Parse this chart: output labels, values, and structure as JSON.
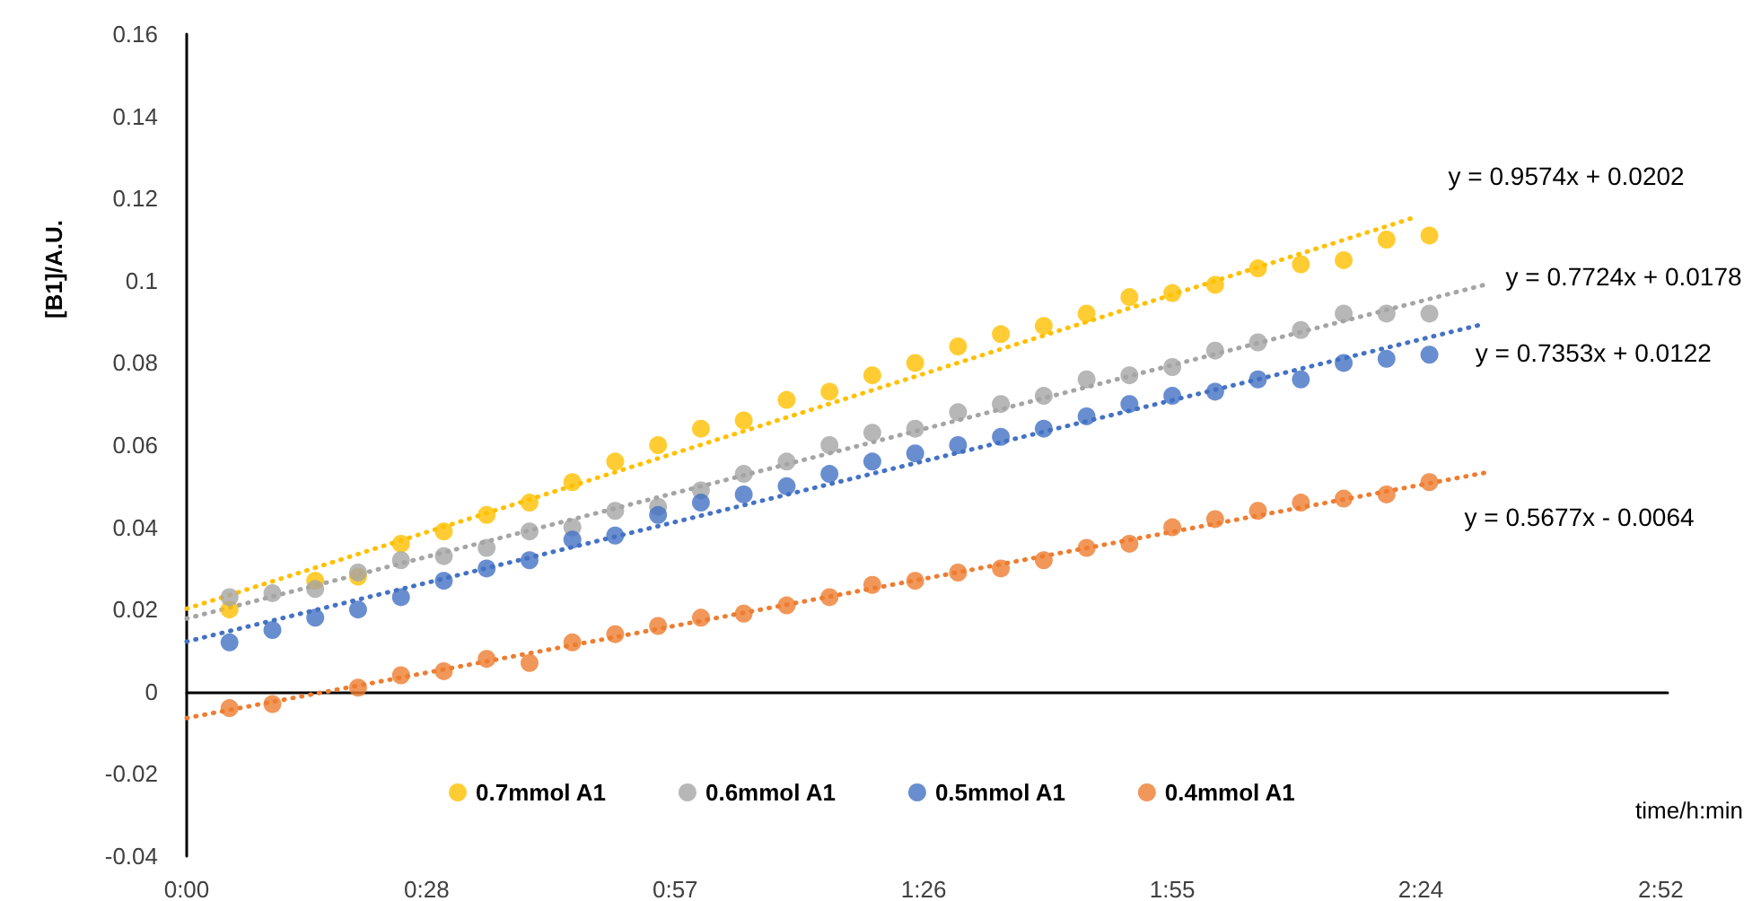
{
  "chart_data": {
    "type": "scatter",
    "xlabel": "time/h:min",
    "ylabel": "[B1]/A.U.",
    "xlim": [
      0,
      2.88
    ],
    "xticks": [
      {
        "value": 0,
        "label": "0:00"
      },
      {
        "value": 0.4667,
        "label": "0:28"
      },
      {
        "value": 0.95,
        "label": "0:57"
      },
      {
        "value": 1.4333,
        "label": "1:26"
      },
      {
        "value": 1.9167,
        "label": "1:55"
      },
      {
        "value": 2.4,
        "label": "2:24"
      },
      {
        "value": 2.8667,
        "label": "2:52"
      }
    ],
    "ylim": [
      -0.04,
      0.16
    ],
    "yticks": [
      -0.04,
      -0.02,
      0,
      0.02,
      0.04,
      0.06,
      0.08,
      0.1,
      0.12,
      0.14,
      0.16
    ],
    "x": [
      0.0833,
      0.1667,
      0.25,
      0.3333,
      0.4167,
      0.5,
      0.5833,
      0.6667,
      0.75,
      0.8333,
      0.9167,
      1,
      1.0833,
      1.1667,
      1.25,
      1.3333,
      1.4167,
      1.5,
      1.5833,
      1.6667,
      1.75,
      1.8333,
      1.9167,
      2,
      2.0833,
      2.1667,
      2.25,
      2.3333,
      2.4167
    ],
    "marker": "circle",
    "legend": "bottom",
    "series": [
      {
        "name": "0.7mmol A1",
        "color": "#ffc000",
        "values": [
          0.02,
          null,
          0.027,
          0.028,
          0.036,
          0.039,
          0.043,
          0.046,
          0.051,
          0.056,
          0.06,
          0.064,
          0.066,
          0.071,
          0.073,
          0.077,
          0.08,
          0.084,
          0.087,
          0.089,
          0.092,
          0.096,
          0.097,
          0.099,
          0.103,
          0.104,
          0.105,
          0.11,
          0.111
        ]
      },
      {
        "name": "0.6mmol A1",
        "color": "#a5a5a5",
        "values": [
          0.023,
          0.024,
          0.025,
          0.029,
          0.032,
          0.033,
          0.035,
          0.039,
          0.04,
          0.044,
          0.045,
          0.049,
          0.053,
          0.056,
          0.06,
          0.063,
          0.064,
          0.068,
          0.07,
          0.072,
          0.076,
          0.077,
          0.079,
          0.083,
          0.085,
          0.088,
          0.092,
          0.092,
          0.092
        ]
      },
      {
        "name": "0.5mmol A1",
        "color": "#4472c4",
        "values": [
          0.012,
          0.015,
          0.018,
          0.02,
          0.023,
          0.027,
          0.03,
          0.032,
          0.037,
          0.038,
          0.043,
          0.046,
          0.048,
          0.05,
          0.053,
          0.056,
          0.058,
          0.06,
          0.062,
          0.064,
          0.067,
          0.07,
          0.072,
          0.073,
          0.076,
          0.076,
          0.08,
          0.081,
          0.082
        ]
      },
      {
        "name": "0.4mmol A1",
        "color": "#ed7d31",
        "values": [
          -0.004,
          -0.003,
          null,
          0.001,
          0.004,
          0.005,
          0.008,
          0.007,
          0.012,
          0.014,
          0.016,
          0.018,
          0.019,
          0.021,
          0.023,
          0.026,
          0.027,
          0.029,
          0.03,
          0.032,
          0.035,
          0.036,
          0.04,
          0.042,
          0.044,
          0.046,
          0.047,
          0.048,
          0.051
        ]
      },
      {
        "type": "line",
        "name": "y = 0.9574x + 0.0202",
        "color": "#ffc000",
        "line_style": "dotted",
        "marker": "none",
        "x": [
          0,
          2.38
        ],
        "values": [
          0.0202,
          0.1151
        ]
      },
      {
        "type": "line",
        "name": "y = 0.7724x + 0.0178",
        "color": "#a5a5a5",
        "line_style": "dotted",
        "marker": "none",
        "x": [
          0,
          2.53
        ],
        "values": [
          0.0178,
          0.0992
        ]
      },
      {
        "type": "line",
        "name": "y = 0.7353x + 0.0122",
        "color": "#4472c4",
        "line_style": "dotted",
        "marker": "none",
        "x": [
          0,
          2.52
        ],
        "values": [
          0.0122,
          0.0894
        ]
      },
      {
        "type": "line",
        "name": "y = 0.5677x - 0.0064",
        "color": "#ed7d31",
        "line_style": "dotted",
        "marker": "none",
        "x": [
          0,
          2.53
        ],
        "values": [
          -0.0064,
          0.0534
        ]
      }
    ]
  }
}
